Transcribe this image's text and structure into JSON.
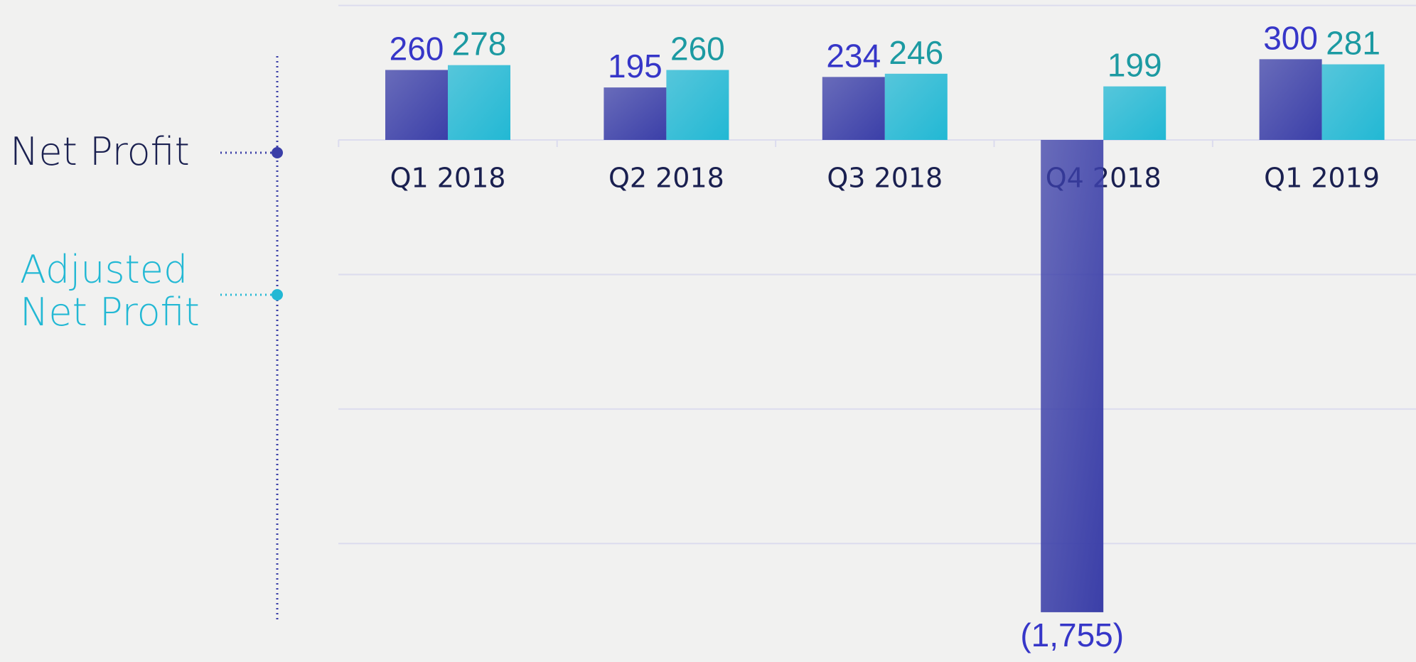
{
  "chart_data": {
    "type": "bar",
    "categories": [
      "Q1 2018",
      "Q2 2018",
      "Q3 2018",
      "Q4 2018",
      "Q1 2019"
    ],
    "series": [
      {
        "name": "Net Profit",
        "color": "#3b3fa8",
        "label_color": "#3636c8",
        "values": [
          260,
          195,
          234,
          -1755,
          300
        ],
        "value_labels": [
          "260",
          "195",
          "234",
          "(1,755)",
          "300"
        ]
      },
      {
        "name": "Adjusted Net Profit",
        "color": "#22b8d4",
        "label_color": "#1c9aa2",
        "values": [
          278,
          260,
          246,
          199,
          281
        ]
      }
    ],
    "ylim": [
      -1940,
      520
    ],
    "yticks": [
      500,
      0,
      -500,
      -1000,
      -1500
    ],
    "grid": true,
    "legend": "left"
  }
}
